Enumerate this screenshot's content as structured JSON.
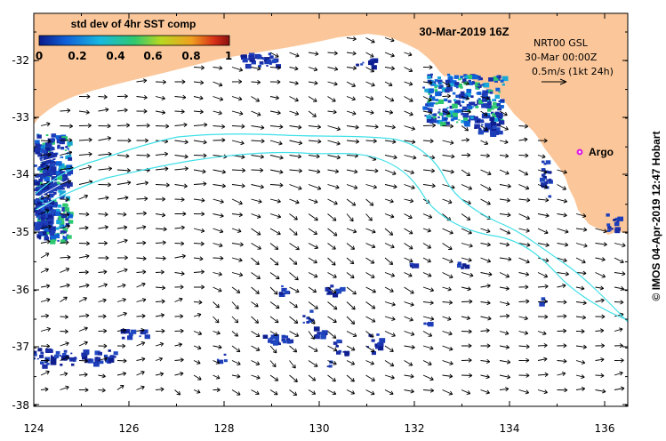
{
  "map": {
    "title": "30-Mar-2019 16Z",
    "colorbar": {
      "title": "std dev of 4hr SST comp",
      "ticks": [
        "0",
        "0.2",
        "0.4",
        "0.6",
        "0.8",
        "1"
      ],
      "colors": [
        "#0a1a8a",
        "#1060d8",
        "#18b8e0",
        "#2ec870",
        "#b8d820",
        "#f0a020",
        "#d83018",
        "#8a1010"
      ]
    },
    "info": {
      "line1": "NRT00 GSL",
      "line2": "30-Mar 00:00Z",
      "line3": "0.5m/s (1kt 24h)"
    },
    "argo": {
      "label": "Argo",
      "lon": 135.5,
      "lat": -33.6,
      "color": "#e020e0"
    },
    "credit": "© IMOS 04-Apr-2019 12:47 Hobart",
    "x_ticks": [
      "124",
      "126",
      "128",
      "130",
      "132",
      "134",
      "136"
    ],
    "y_ticks": [
      "-32",
      "-33",
      "-34",
      "-35",
      "-36",
      "-37",
      "-38"
    ],
    "extent": {
      "lon_min": 124,
      "lon_max": 136.5,
      "lat_min": -38.1,
      "lat_max": -31.35
    },
    "colors": {
      "land": "#fbc79a",
      "ocean": "#ffffff",
      "contour": "#40e0e8",
      "arrow": "#000000",
      "sst_low": "#1a2ea8"
    }
  }
}
